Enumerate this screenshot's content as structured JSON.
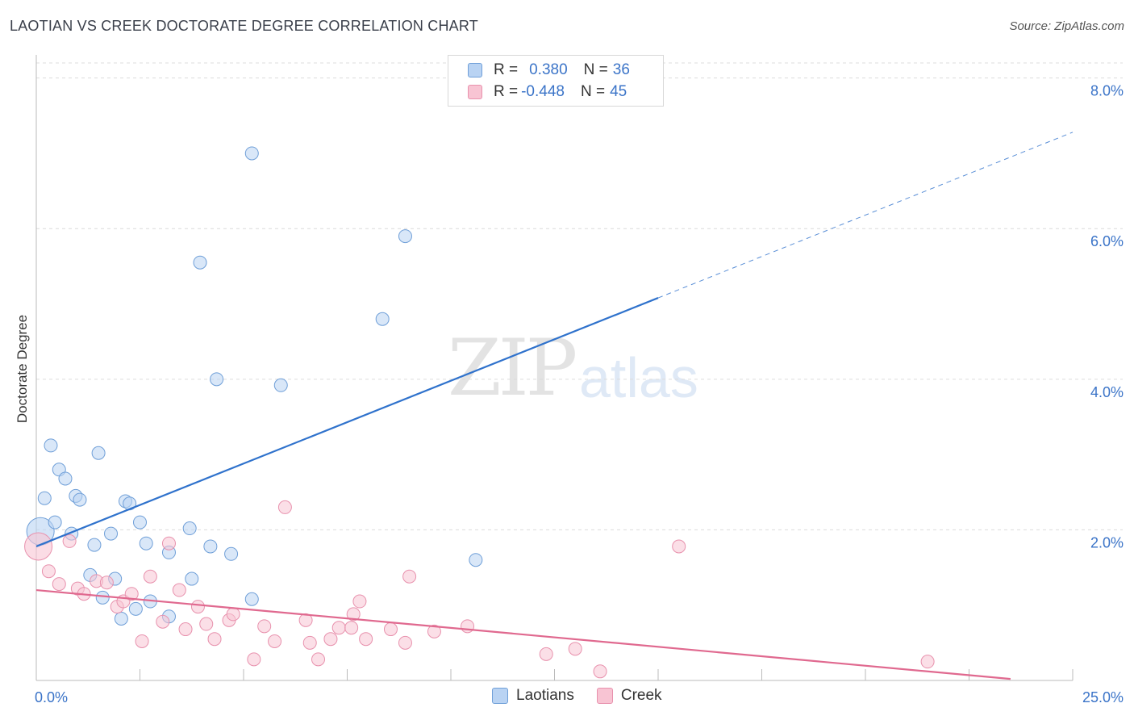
{
  "header": {
    "title": "LAOTIAN VS CREEK DOCTORATE DEGREE CORRELATION CHART",
    "source": "Source: ZipAtlas.com"
  },
  "watermark": {
    "zip": "ZIP",
    "atlas": "atlas"
  },
  "legend": {
    "rows": [
      {
        "r_label": "R = ",
        "r_value": "0.380",
        "n_label": "N = ",
        "n_value": "36"
      },
      {
        "r_label": "R = ",
        "r_value": "-0.448",
        "n_label": "N = ",
        "n_value": "45"
      }
    ]
  },
  "bottom_legend": {
    "series1": "Laotians",
    "series2": "Creek"
  },
  "colors": {
    "laotians_fill": "#b9d3f3",
    "laotians_stroke": "#6f9fd8",
    "laotians_line": "#2f72cc",
    "creek_fill": "#f8c4d3",
    "creek_stroke": "#e891ad",
    "creek_line": "#e0698f",
    "grid": "#dcdcdc",
    "tick_text": "#3b74c8"
  },
  "chart_data": {
    "type": "scatter",
    "title": "LAOTIAN VS CREEK DOCTORATE DEGREE CORRELATION CHART",
    "xlabel": "",
    "ylabel": "Doctorate Degree",
    "xlim": [
      0,
      25
    ],
    "ylim": [
      0,
      8.2
    ],
    "x_tick_labels": [
      "0.0%",
      "25.0%"
    ],
    "y_ticks": [
      2,
      4,
      6,
      8
    ],
    "y_tick_labels": [
      "2.0%",
      "4.0%",
      "6.0%",
      "8.0%"
    ],
    "grid": true,
    "legend_position": "top-center",
    "series": [
      {
        "name": "Laotians",
        "points": [
          [
            0.1,
            1.98
          ],
          [
            0.2,
            2.42
          ],
          [
            0.35,
            3.12
          ],
          [
            0.45,
            2.1
          ],
          [
            0.55,
            2.8
          ],
          [
            0.7,
            2.68
          ],
          [
            0.85,
            1.95
          ],
          [
            0.95,
            2.45
          ],
          [
            1.05,
            2.4
          ],
          [
            1.3,
            1.4
          ],
          [
            1.4,
            1.8
          ],
          [
            1.5,
            3.02
          ],
          [
            1.6,
            1.1
          ],
          [
            1.8,
            1.95
          ],
          [
            1.9,
            1.35
          ],
          [
            2.05,
            0.82
          ],
          [
            2.15,
            2.38
          ],
          [
            2.25,
            2.35
          ],
          [
            2.4,
            0.95
          ],
          [
            2.5,
            2.1
          ],
          [
            2.65,
            1.82
          ],
          [
            2.75,
            1.05
          ],
          [
            3.2,
            0.85
          ],
          [
            3.2,
            1.7
          ],
          [
            3.7,
            2.02
          ],
          [
            3.75,
            1.35
          ],
          [
            3.95,
            5.55
          ],
          [
            4.2,
            1.78
          ],
          [
            4.35,
            4.0
          ],
          [
            4.7,
            1.68
          ],
          [
            5.2,
            7.0
          ],
          [
            5.2,
            1.08
          ],
          [
            5.9,
            3.92
          ],
          [
            8.35,
            4.8
          ],
          [
            8.9,
            5.9
          ],
          [
            10.6,
            1.6
          ]
        ],
        "trend": {
          "x0": 0,
          "y0": 1.78,
          "x1": 15,
          "y1": 5.08,
          "x_dash_end": 25,
          "y_dash_end": 7.28
        }
      },
      {
        "name": "Creek",
        "points": [
          [
            0.05,
            1.78
          ],
          [
            0.3,
            1.45
          ],
          [
            0.55,
            1.28
          ],
          [
            0.8,
            1.85
          ],
          [
            1.0,
            1.22
          ],
          [
            1.15,
            1.15
          ],
          [
            1.45,
            1.32
          ],
          [
            1.7,
            1.3
          ],
          [
            1.95,
            0.98
          ],
          [
            2.1,
            1.05
          ],
          [
            2.3,
            1.15
          ],
          [
            2.55,
            0.52
          ],
          [
            2.75,
            1.38
          ],
          [
            3.05,
            0.78
          ],
          [
            3.2,
            1.82
          ],
          [
            3.45,
            1.2
          ],
          [
            3.6,
            0.68
          ],
          [
            3.9,
            0.98
          ],
          [
            4.1,
            0.75
          ],
          [
            4.3,
            0.55
          ],
          [
            4.65,
            0.8
          ],
          [
            4.75,
            0.88
          ],
          [
            5.25,
            0.28
          ],
          [
            5.5,
            0.72
          ],
          [
            5.75,
            0.52
          ],
          [
            6.0,
            2.3
          ],
          [
            6.5,
            0.8
          ],
          [
            6.6,
            0.5
          ],
          [
            6.8,
            0.28
          ],
          [
            7.1,
            0.55
          ],
          [
            7.3,
            0.7
          ],
          [
            7.6,
            0.7
          ],
          [
            7.65,
            0.88
          ],
          [
            7.8,
            1.05
          ],
          [
            7.95,
            0.55
          ],
          [
            8.55,
            0.68
          ],
          [
            8.9,
            0.5
          ],
          [
            9.0,
            1.38
          ],
          [
            9.6,
            0.65
          ],
          [
            10.4,
            0.72
          ],
          [
            12.3,
            0.35
          ],
          [
            13.0,
            0.42
          ],
          [
            13.6,
            0.12
          ],
          [
            15.5,
            1.78
          ],
          [
            21.5,
            0.25
          ]
        ],
        "trend": {
          "x0": 0,
          "y0": 1.2,
          "x1": 23.5,
          "y1": 0.02
        }
      }
    ]
  }
}
